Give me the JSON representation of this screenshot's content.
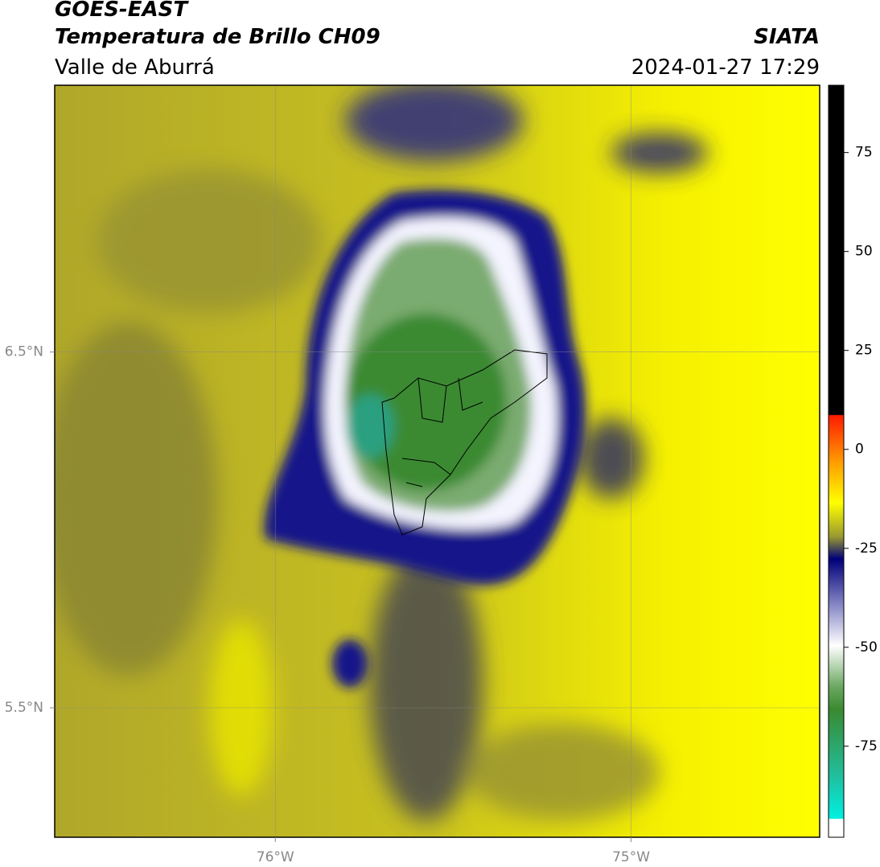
{
  "header": {
    "title": "GOES-EAST",
    "subtitle": "Temperatura de Brillo CH09",
    "region": "Valle de Aburrá",
    "source": "SIATA",
    "timestamp": "2024-01-27 17:29"
  },
  "map": {
    "xlim": [
      -76.62,
      -74.47
    ],
    "ylim": [
      5.136,
      7.25
    ],
    "xticks": [
      {
        "value": -76,
        "label": "76°W"
      },
      {
        "value": -75,
        "label": "75°W"
      }
    ],
    "yticks": [
      {
        "value": 5.5,
        "label": "5.5°N"
      },
      {
        "value": 6.5,
        "label": "6.5°N"
      }
    ],
    "grid": true
  },
  "colorbar": {
    "lim": [
      -98,
      92
    ],
    "ticks": [
      -75,
      -50,
      -25,
      0,
      25,
      50,
      75
    ]
  }
}
